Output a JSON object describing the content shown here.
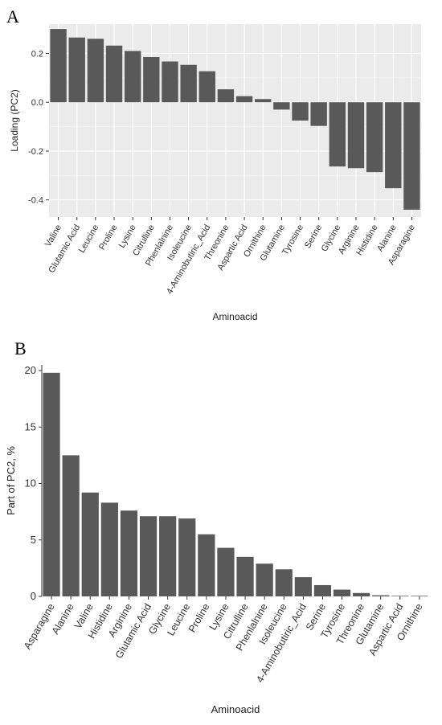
{
  "panels": {
    "a_label": "A",
    "b_label": "B"
  },
  "colors": {
    "bar": "#595959",
    "panel_bg_a": "#ebebeb",
    "panel_bg_b": "#ffffff",
    "grid": "#ffffff"
  },
  "chart_data": [
    {
      "type": "bar",
      "panel": "A",
      "xlabel": "Aminoacid",
      "ylabel": "Loading (PC2)",
      "ylim": [
        -0.47,
        0.32
      ],
      "yticks": [
        -0.4,
        -0.2,
        0.0,
        0.2
      ],
      "ytick_labels": [
        "-0.4",
        "-0.2",
        "0.0",
        "0.2"
      ],
      "grid": true,
      "categories": [
        "Valine",
        "Glutamic Acid",
        "Leucine",
        "Proline",
        "Lysine",
        "Citrulline",
        "Phenlalnine",
        "Isoleucine",
        "4-Aminobutiric_Acid",
        "Threonine",
        "Aspartic Acid",
        "Ornithine",
        "Glutamine",
        "Tyrosine",
        "Serine",
        "Glycine",
        "Arginine",
        "Histidine",
        "Alanine",
        "Asparagine"
      ],
      "values": [
        0.3,
        0.265,
        0.26,
        0.232,
        0.21,
        0.185,
        0.167,
        0.153,
        0.127,
        0.053,
        0.025,
        0.013,
        -0.03,
        -0.075,
        -0.097,
        -0.263,
        -0.27,
        -0.286,
        -0.352,
        -0.44
      ]
    },
    {
      "type": "bar",
      "panel": "B",
      "xlabel": "Aminoacid",
      "ylabel": "Part of PC2, %",
      "ylim": [
        0,
        20.5
      ],
      "yticks": [
        0,
        5,
        10,
        15,
        20
      ],
      "ytick_labels": [
        "0",
        "5",
        "10",
        "15",
        "20"
      ],
      "grid": false,
      "categories": [
        "Asparagine",
        "Alanine",
        "Valine",
        "Histidine",
        "Arginine",
        "Glutamic Acid",
        "Glycine",
        "Leucine",
        "Proline",
        "Lysine",
        "Citrulline",
        "Phenlalnine",
        "Isoleucine",
        "4-Aminobutiric_Acid",
        "Serine",
        "Tyrosine",
        "Threonine",
        "Glutamine",
        "Aspartic Acid",
        "Ornithine"
      ],
      "values": [
        19.8,
        12.5,
        9.2,
        8.3,
        7.6,
        7.1,
        7.1,
        6.9,
        5.5,
        4.3,
        3.5,
        2.9,
        2.4,
        1.7,
        1.0,
        0.6,
        0.3,
        0.1,
        0.05,
        0.05
      ]
    }
  ]
}
